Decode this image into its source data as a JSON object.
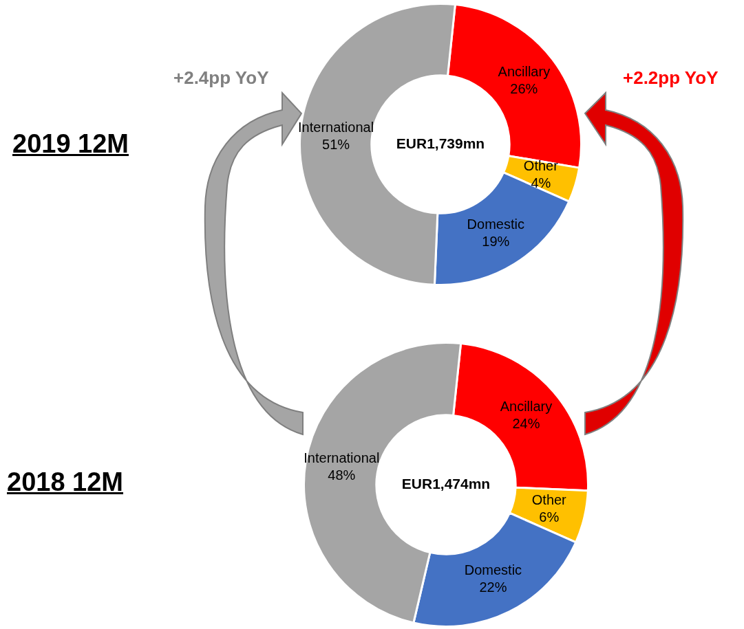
{
  "chart_data": [
    {
      "type": "donut",
      "title": "2019 12M",
      "categories": [
        "Ancillary",
        "Other",
        "Domestic",
        "International"
      ],
      "values": [
        26,
        4,
        19,
        51
      ],
      "colors": [
        "#ff0000",
        "#ffc000",
        "#4472c4",
        "#a5a5a5"
      ],
      "value_labels": [
        "26%",
        "4%",
        "19%",
        "51%"
      ],
      "annotations": [
        "EUR1,739mn",
        "+2.4pp YoY",
        "+2.2pp YoY"
      ]
    },
    {
      "type": "donut",
      "title": "2018 12M",
      "categories": [
        "Ancillary",
        "Other",
        "Domestic",
        "International"
      ],
      "values": [
        24,
        6,
        22,
        48
      ],
      "colors": [
        "#ff0000",
        "#ffc000",
        "#4472c4",
        "#a5a5a5"
      ],
      "value_labels": [
        "24%",
        "6%",
        "22%",
        "48%"
      ],
      "annotations": [
        "EUR1,474mn"
      ]
    }
  ]
}
